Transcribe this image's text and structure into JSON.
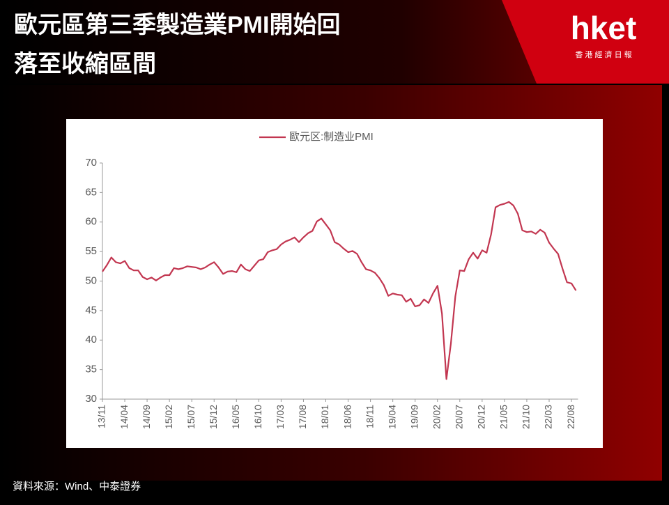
{
  "header": {
    "title_lines": [
      "歐元區第三季製造業PMI開始回",
      "落至收縮區間"
    ],
    "logo": "hket",
    "logo_subtitle": "香 港 經 濟 日 報"
  },
  "chart_data": {
    "type": "line",
    "categories": [
      "13/11",
      null,
      null,
      null,
      null,
      "14/04",
      null,
      null,
      null,
      null,
      "14/09",
      null,
      null,
      null,
      null,
      "15/02",
      null,
      null,
      null,
      null,
      "15/07",
      null,
      null,
      null,
      null,
      "15/12",
      null,
      null,
      null,
      null,
      "16/05",
      null,
      null,
      null,
      null,
      "16/10",
      null,
      null,
      null,
      null,
      "17/03",
      null,
      null,
      null,
      null,
      "17/08",
      null,
      null,
      null,
      null,
      "18/01",
      null,
      null,
      null,
      null,
      "18/06",
      null,
      null,
      null,
      null,
      "18/11",
      null,
      null,
      null,
      null,
      "19/04",
      null,
      null,
      null,
      null,
      "19/09",
      null,
      null,
      null,
      null,
      "20/02",
      null,
      null,
      null,
      null,
      "20/07",
      null,
      null,
      null,
      null,
      "20/12",
      null,
      null,
      null,
      null,
      "21/05",
      null,
      null,
      null,
      null,
      "21/10",
      null,
      null,
      null,
      null,
      "22/03",
      null,
      null,
      null,
      null,
      "22/08",
      null
    ],
    "series": [
      {
        "name": "歐元区:制造业PMI",
        "color": "#c23650",
        "values": [
          51.6,
          52.7,
          54.0,
          53.2,
          53.0,
          53.4,
          52.2,
          51.8,
          51.8,
          50.7,
          50.3,
          50.6,
          50.1,
          50.6,
          51.0,
          51.0,
          52.2,
          52.0,
          52.2,
          52.5,
          52.4,
          52.3,
          52.0,
          52.3,
          52.8,
          53.2,
          52.3,
          51.2,
          51.6,
          51.7,
          51.5,
          52.8,
          52.0,
          51.7,
          52.6,
          53.5,
          53.7,
          54.9,
          55.2,
          55.4,
          56.2,
          56.7,
          57.0,
          57.4,
          56.6,
          57.4,
          58.1,
          58.5,
          60.1,
          60.6,
          59.6,
          58.6,
          56.6,
          56.2,
          55.5,
          54.9,
          55.1,
          54.6,
          53.2,
          52.0,
          51.8,
          51.4,
          50.5,
          49.3,
          47.5,
          47.9,
          47.7,
          47.6,
          46.5,
          47.0,
          45.7,
          45.9,
          46.9,
          46.3,
          47.9,
          49.2,
          44.5,
          33.4,
          39.4,
          47.4,
          51.8,
          51.7,
          53.7,
          54.8,
          53.8,
          55.2,
          54.8,
          57.9,
          62.5,
          62.9,
          63.1,
          63.4,
          62.8,
          61.4,
          58.6,
          58.3,
          58.4,
          58.0,
          58.7,
          58.2,
          56.5,
          55.5,
          54.6,
          52.1,
          49.8,
          49.6,
          48.4
        ]
      }
    ],
    "ylim": [
      30,
      70
    ],
    "yticks": [
      30,
      35,
      40,
      45,
      50,
      55,
      60,
      65,
      70
    ],
    "grid": false,
    "legend": "top"
  },
  "footer": {
    "source": "資料來源：Wind、中泰證券"
  }
}
